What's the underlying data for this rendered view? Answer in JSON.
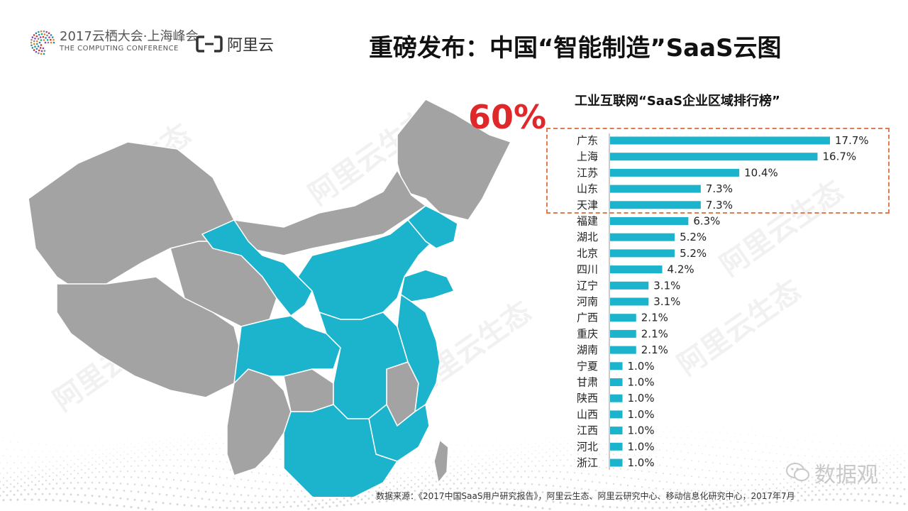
{
  "header": {
    "conference_line1": "2017云栖大会·上海峰会",
    "conference_line2": "THE COMPUTING CONFERENCE",
    "brand_name": "阿里云"
  },
  "title": "重磅发布：中国“智能制造”SaaS云图",
  "callout": "60%",
  "watermarks": [
    "阿里云生态"
  ],
  "chart_data": {
    "type": "bar",
    "orientation": "horizontal",
    "title": "工业互联网“SaaS企业区域排行榜”",
    "categories": [
      "广东",
      "上海",
      "江苏",
      "山东",
      "天津",
      "福建",
      "湖北",
      "北京",
      "四川",
      "辽宁",
      "河南",
      "广西",
      "重庆",
      "湖南",
      "宁夏",
      "甘肃",
      "陕西",
      "山西",
      "江西",
      "河北",
      "浙江"
    ],
    "values": [
      17.7,
      16.7,
      10.4,
      7.3,
      7.3,
      6.3,
      5.2,
      5.2,
      4.2,
      3.1,
      3.1,
      2.1,
      2.1,
      2.1,
      1.0,
      1.0,
      1.0,
      1.0,
      1.0,
      1.0,
      1.0
    ],
    "value_labels": [
      "17.7%",
      "16.7%",
      "10.4%",
      "7.3%",
      "7.3%",
      "6.3%",
      "5.2%",
      "5.2%",
      "4.2%",
      "3.1%",
      "3.1%",
      "2.1%",
      "2.1%",
      "2.1%",
      "1.0%",
      "1.0%",
      "1.0%",
      "1.0%",
      "1.0%",
      "1.0%",
      "1.0%"
    ],
    "highlight_top_n": 5,
    "xlim": [
      0,
      18
    ],
    "grid": false,
    "bar_color": "#1bb4cc"
  },
  "colors": {
    "bar": "#1bb4cc",
    "map_highlight": "#1bb4cc",
    "map_base": "#a3a3a3",
    "callout": "#e0272a",
    "highlight_border": "#e07a50"
  },
  "footer": {
    "source": "数据来源：《2017中国SaaS用户研究报告》，阿里云生态、阿里云研究中心、移动信息化研究中心，2017年7月",
    "watermark_logo": "数据观"
  }
}
